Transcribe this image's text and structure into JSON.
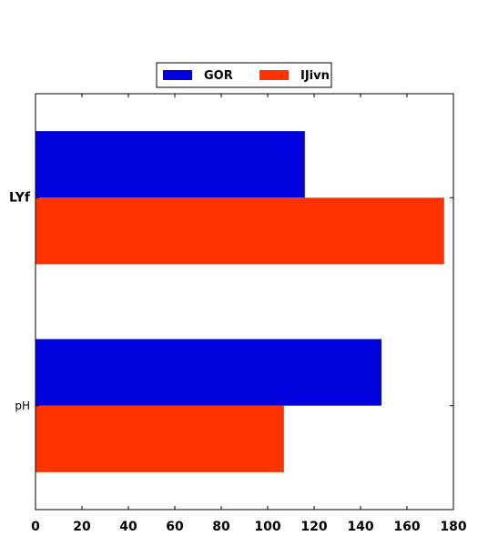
{
  "chart_data": {
    "type": "bar",
    "orientation": "horizontal",
    "categories": [
      "LYf",
      "pH"
    ],
    "category_label_bold": [
      true,
      false
    ],
    "series": [
      {
        "name": "GOR",
        "color": "#0000dd",
        "values": [
          116,
          149
        ]
      },
      {
        "name": "IJivn",
        "color": "#ff3300",
        "values": [
          176,
          107
        ]
      }
    ],
    "x_ticks": [
      "0",
      "20",
      "40",
      "60",
      "80",
      "100",
      "120",
      "140",
      "160",
      "180"
    ],
    "xlim": [
      0,
      180
    ],
    "title": "",
    "xlabel": "",
    "ylabel": "",
    "grid": false,
    "legend_position": "top-center"
  }
}
